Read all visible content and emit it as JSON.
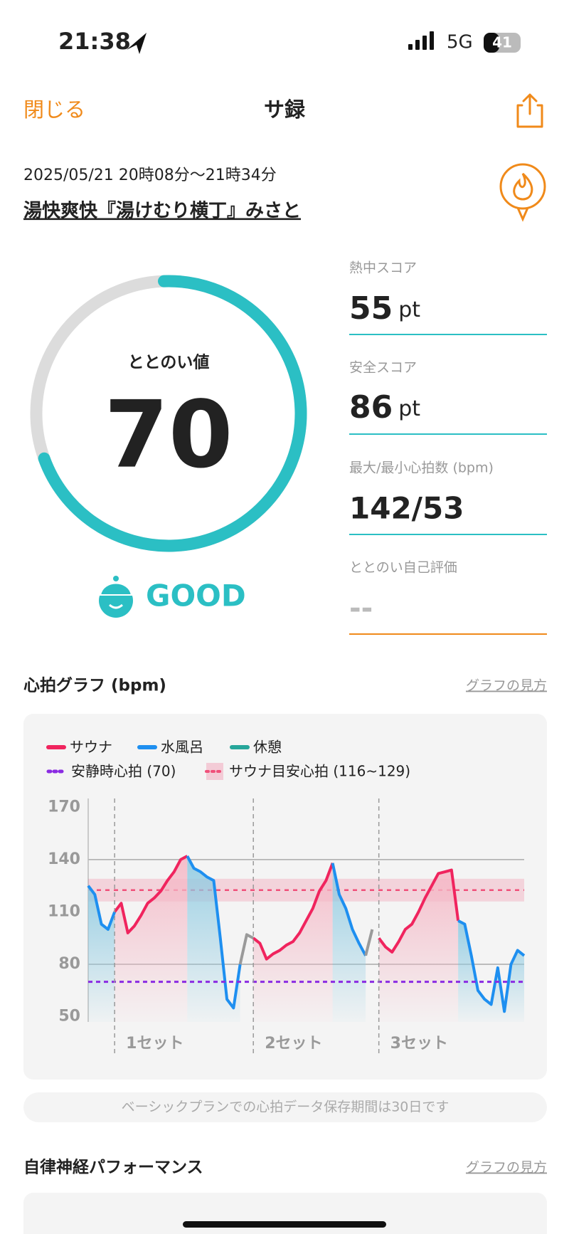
{
  "status_bar": {
    "time": "21:38",
    "network": "5G",
    "battery": "41"
  },
  "nav": {
    "close": "閉じる",
    "title": "サ録"
  },
  "session": {
    "datetime": "2025/05/21 20時08分～21時34分",
    "facility": "湯快爽快『湯けむり横丁』みさと"
  },
  "score": {
    "label": "ととのい値",
    "value": 70,
    "range": [
      0,
      100
    ],
    "rating": "GOOD"
  },
  "stats": [
    {
      "label": "熱中スコア",
      "value": 55,
      "unit": "pt"
    },
    {
      "label": "安全スコア",
      "value": 86,
      "unit": "pt"
    },
    {
      "label": "最大/最小心拍数 (bpm)",
      "value": "142/53"
    },
    {
      "label": "ととのい自己評価",
      "value": "--"
    }
  ],
  "heart_section": {
    "title": "心拍グラフ (bpm)",
    "link": "グラフの見方",
    "note": "ベーシックプランでの心拍データ保存期間は30日です"
  },
  "chart_data": {
    "type": "line",
    "x": [
      0,
      1,
      2,
      3,
      4,
      5,
      6,
      7,
      8,
      9,
      10,
      11,
      12,
      13,
      14,
      15,
      16,
      17,
      18,
      19,
      20,
      21,
      22,
      23,
      24,
      25,
      26,
      27,
      28,
      29,
      30,
      31,
      32,
      33,
      34,
      35,
      36,
      37,
      38,
      39,
      40,
      41,
      42,
      43,
      44,
      45,
      46,
      47,
      48,
      49,
      50,
      51,
      52,
      53,
      54,
      55,
      56,
      57,
      58,
      59,
      60,
      61,
      62,
      63,
      64,
      65,
      66
    ],
    "xlim": [
      0,
      66
    ],
    "ylim": [
      47,
      175
    ],
    "yticks": [
      50,
      80,
      110,
      140,
      170
    ],
    "gridlines": [
      80,
      140
    ],
    "series": [
      {
        "name": "サウナ",
        "color": "#f0245e",
        "fill": "#f5b8c6",
        "values": [
          null,
          null,
          null,
          null,
          110,
          115,
          98,
          102,
          108,
          115,
          118,
          122,
          128,
          133,
          140,
          142,
          null,
          null,
          null,
          null,
          null,
          null,
          null,
          null,
          null,
          95,
          92,
          83,
          86,
          88,
          91,
          93,
          98,
          105,
          112,
          122,
          128,
          138,
          null,
          null,
          null,
          null,
          null,
          null,
          95,
          90,
          87,
          93,
          100,
          103,
          110,
          118,
          125,
          132,
          133,
          134,
          105,
          null,
          null,
          null,
          null,
          null,
          null,
          null,
          null,
          null,
          null
        ]
      },
      {
        "name": "水風呂",
        "color": "#1e8ff0",
        "fill": "#9fd3e6",
        "values": [
          125,
          120,
          103,
          100,
          110,
          null,
          null,
          null,
          null,
          null,
          null,
          null,
          null,
          null,
          null,
          142,
          135,
          133,
          130,
          128,
          95,
          60,
          55,
          80,
          null,
          null,
          null,
          null,
          null,
          null,
          null,
          null,
          null,
          null,
          null,
          null,
          null,
          138,
          120,
          112,
          100,
          92,
          85,
          null,
          null,
          null,
          null,
          null,
          null,
          null,
          null,
          null,
          null,
          null,
          null,
          null,
          105,
          103,
          85,
          65,
          60,
          57,
          78,
          53,
          80,
          88,
          85
        ]
      },
      {
        "name": "休憩",
        "color": "#26a69a",
        "line_color": "#9a9a9a",
        "values": [
          null,
          null,
          null,
          null,
          null,
          null,
          null,
          null,
          null,
          null,
          null,
          null,
          null,
          null,
          null,
          null,
          null,
          null,
          null,
          null,
          null,
          null,
          null,
          80,
          97,
          95,
          null,
          null,
          null,
          null,
          null,
          null,
          null,
          null,
          null,
          null,
          null,
          null,
          null,
          null,
          null,
          null,
          85,
          100,
          null,
          null,
          null,
          null,
          null,
          null,
          null,
          null,
          null,
          null,
          null,
          null,
          null,
          null,
          null,
          null,
          null,
          null,
          null,
          null,
          null,
          null,
          null
        ]
      }
    ],
    "resting_hr": {
      "label": "安静時心拍 (70)",
      "value": 70,
      "color": "#8a2be2"
    },
    "target_band": {
      "label": "サウナ目安心拍 (116~129)",
      "range": [
        116,
        129
      ],
      "color": "#f0507a"
    },
    "sets": [
      "1セット",
      "2セット",
      "3セット"
    ]
  },
  "autonomic_section": {
    "title": "自律神経パフォーマンス",
    "link": "グラフの見方"
  }
}
